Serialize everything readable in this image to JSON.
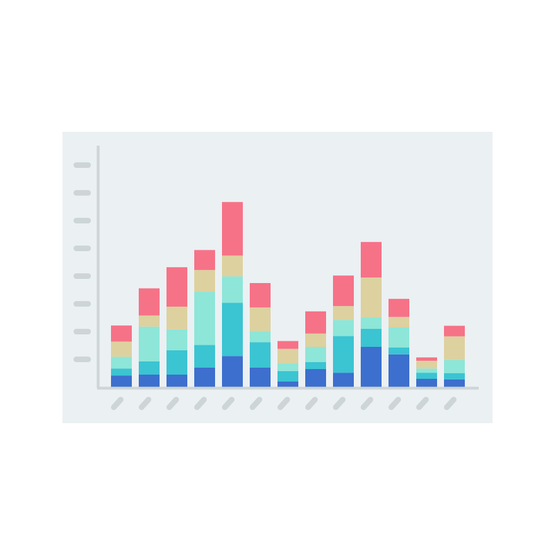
{
  "chart_data": {
    "type": "bar",
    "stacked": true,
    "title": "",
    "xlabel": "",
    "ylabel": "",
    "ylim": [
      0,
      8
    ],
    "y_tick_count": 8,
    "categories_shown_as_placeholders": true,
    "category_count": 13,
    "grid": false,
    "legend": "none",
    "series": [
      {
        "color": "#3c6fce",
        "values": [
          0.42,
          0.45,
          0.45,
          0.7,
          1.12,
          0.7,
          0.2,
          0.65,
          0.52,
          1.45,
          1.18,
          0.3,
          0.28
        ]
      },
      {
        "color": "#3bc4d2",
        "values": [
          0.25,
          0.48,
          0.88,
          0.82,
          1.92,
          0.92,
          0.38,
          0.25,
          1.32,
          0.65,
          0.25,
          0.22,
          0.22
        ]
      },
      {
        "color": "#8de6d8",
        "values": [
          0.42,
          1.25,
          0.75,
          1.92,
          0.95,
          0.4,
          0.28,
          0.55,
          0.58,
          0.4,
          0.72,
          0.15,
          0.48
        ]
      },
      {
        "color": "#ddd19f",
        "values": [
          0.55,
          0.4,
          0.82,
          0.78,
          0.75,
          0.85,
          0.52,
          0.48,
          0.5,
          1.45,
          0.38,
          0.28,
          0.85
        ]
      },
      {
        "color": "#f67287",
        "values": [
          0.58,
          0.98,
          1.42,
          0.72,
          1.93,
          0.88,
          0.28,
          0.8,
          1.1,
          1.28,
          0.65,
          0.12,
          0.38
        ]
      }
    ]
  },
  "style": {
    "panel_bg": "#ebf0f3",
    "axis_color": "#cdd5d6",
    "placeholder_color": "#cdd5d6",
    "page_bg": "#ffffff"
  }
}
